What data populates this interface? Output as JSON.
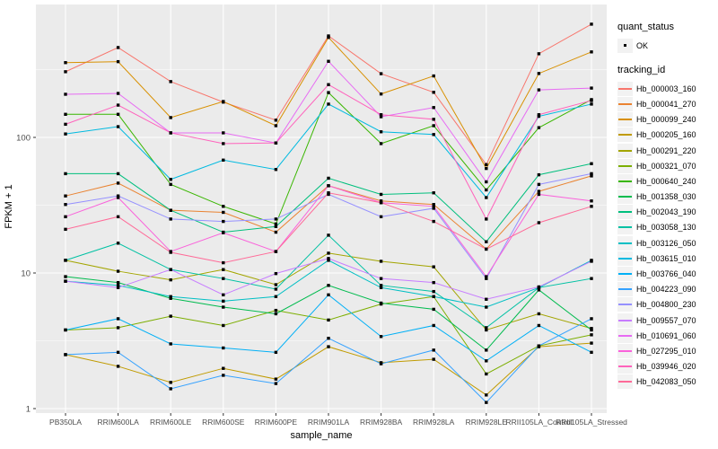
{
  "figure": {
    "x_axis_title": "sample_name",
    "y_axis_title": "FPKM + 1",
    "legend_quant_title": "quant_status",
    "legend_quant_item": "OK",
    "legend_tracking_title": "tracking_id"
  },
  "colors": {
    "panel_background": "#EBEBEB",
    "grid": "#FFFFFF",
    "legend_key_background": "#F2F2F2",
    "axis_text": "#4D4D4D",
    "marker": "#000000"
  },
  "chart_data": {
    "type": "line",
    "title": "",
    "xlabel": "sample_name",
    "ylabel": "FPKM + 1",
    "y_scale": "log10",
    "ylim": [
      1,
      1000
    ],
    "y_major_ticks": [
      100,
      10,
      1
    ],
    "y_tick_labels": [
      "100",
      "10",
      "1"
    ],
    "y_minor_ticks": [
      3.162,
      31.623,
      316.228
    ],
    "grid": true,
    "legend_position": "right",
    "point_marker": "filled-black-square",
    "quant_status_value": "OK",
    "categories": [
      "PB350LA",
      "RRIM600LA",
      "RRIM600LE",
      "RRIM600SE",
      "RRIM600PE",
      "RRIM901LA",
      "RRIM928BA",
      "RRIM928LA",
      "RRIM928LE",
      "RRII105LA_Control",
      "RRII105LA_Stressed"
    ],
    "series": [
      {
        "name": "Hb_000003_160",
        "color": "#F8766D",
        "values": [
          305,
          460,
          258,
          182,
          134,
          560,
          295,
          215,
          63,
          414,
          684
        ]
      },
      {
        "name": "Hb_000041_270",
        "color": "#EA8331",
        "values": [
          37,
          46,
          29,
          28,
          20,
          44,
          34,
          32,
          15,
          40,
          52
        ]
      },
      {
        "name": "Hb_000099_240",
        "color": "#D89000",
        "values": [
          356,
          362,
          140,
          184,
          122,
          546,
          209,
          284,
          59,
          296,
          427
        ]
      },
      {
        "name": "Hb_000205_160",
        "color": "#C09B00",
        "values": [
          2.5,
          2.05,
          1.56,
          1.98,
          1.65,
          2.86,
          2.18,
          2.31,
          1.26,
          2.86,
          3.04
        ]
      },
      {
        "name": "Hb_000291_220",
        "color": "#A3A500",
        "values": [
          12.4,
          10.3,
          8.9,
          10.6,
          8.2,
          14.0,
          12.2,
          11.1,
          3.8,
          5.0,
          3.9
        ]
      },
      {
        "name": "Hb_000321_070",
        "color": "#7CAE00",
        "values": [
          3.8,
          3.95,
          4.8,
          4.1,
          5.3,
          4.5,
          5.9,
          6.7,
          1.8,
          2.9,
          3.5
        ]
      },
      {
        "name": "Hb_000640_240",
        "color": "#39B600",
        "values": [
          148,
          148,
          45,
          31,
          23,
          214,
          90,
          122,
          41,
          118,
          190
        ]
      },
      {
        "name": "Hb_001358_030",
        "color": "#00BB4E",
        "values": [
          9.4,
          8.5,
          6.5,
          5.6,
          5.0,
          8.1,
          6.0,
          5.4,
          2.7,
          7.5,
          3.8
        ]
      },
      {
        "name": "Hb_002043_190",
        "color": "#00BF7D",
        "values": [
          54,
          54,
          29,
          20,
          22,
          50,
          38,
          39,
          17,
          53,
          64
        ]
      },
      {
        "name": "Hb_003058_130",
        "color": "#00C1A3",
        "values": [
          12.4,
          16.6,
          10.6,
          9.1,
          7.6,
          19.0,
          8.1,
          7.3,
          3.95,
          7.8,
          9.1
        ]
      },
      {
        "name": "Hb_003126_050",
        "color": "#00BFC4",
        "values": [
          8.7,
          8.1,
          6.7,
          6.2,
          6.7,
          12.4,
          7.8,
          6.7,
          5.6,
          7.8,
          12.4
        ]
      },
      {
        "name": "Hb_003615_010",
        "color": "#00BAE0",
        "values": [
          106,
          120,
          49,
          68,
          58,
          176,
          110,
          105,
          36,
          143,
          176
        ]
      },
      {
        "name": "Hb_003766_040",
        "color": "#00B0F6",
        "values": [
          3.8,
          4.6,
          3.0,
          2.8,
          2.6,
          6.9,
          3.4,
          4.1,
          2.25,
          4.1,
          2.6
        ]
      },
      {
        "name": "Hb_004223_090",
        "color": "#35A2FF",
        "values": [
          2.5,
          2.6,
          1.4,
          1.76,
          1.53,
          3.3,
          2.14,
          2.7,
          1.11,
          2.9,
          4.6
        ]
      },
      {
        "name": "Hb_004800_230",
        "color": "#9590FF",
        "values": [
          32,
          37,
          25,
          24,
          25,
          38,
          26,
          30,
          9.1,
          45,
          54
        ]
      },
      {
        "name": "Hb_009557_070",
        "color": "#C77CFF",
        "values": [
          8.7,
          7.8,
          10.6,
          6.9,
          9.9,
          12.8,
          9.1,
          8.5,
          6.4,
          7.9,
          12.2
        ]
      },
      {
        "name": "Hb_010691_060",
        "color": "#E76BF3",
        "values": [
          208,
          211,
          108,
          108,
          91,
          364,
          142,
          166,
          47,
          224,
          231
        ]
      },
      {
        "name": "Hb_027295_010",
        "color": "#FA62DB",
        "values": [
          26,
          36,
          14.4,
          19.8,
          14.4,
          44,
          33,
          31,
          9.4,
          38,
          34
        ]
      },
      {
        "name": "Hb_039946_020",
        "color": "#FF62BC",
        "values": [
          125,
          173,
          108,
          90,
          91,
          245,
          147,
          136,
          25,
          147,
          187
        ]
      },
      {
        "name": "Hb_042083_050",
        "color": "#FF6A98",
        "values": [
          21,
          26,
          14.2,
          11.9,
          14.4,
          39,
          33,
          24,
          15,
          23.5,
          31
        ]
      }
    ]
  }
}
